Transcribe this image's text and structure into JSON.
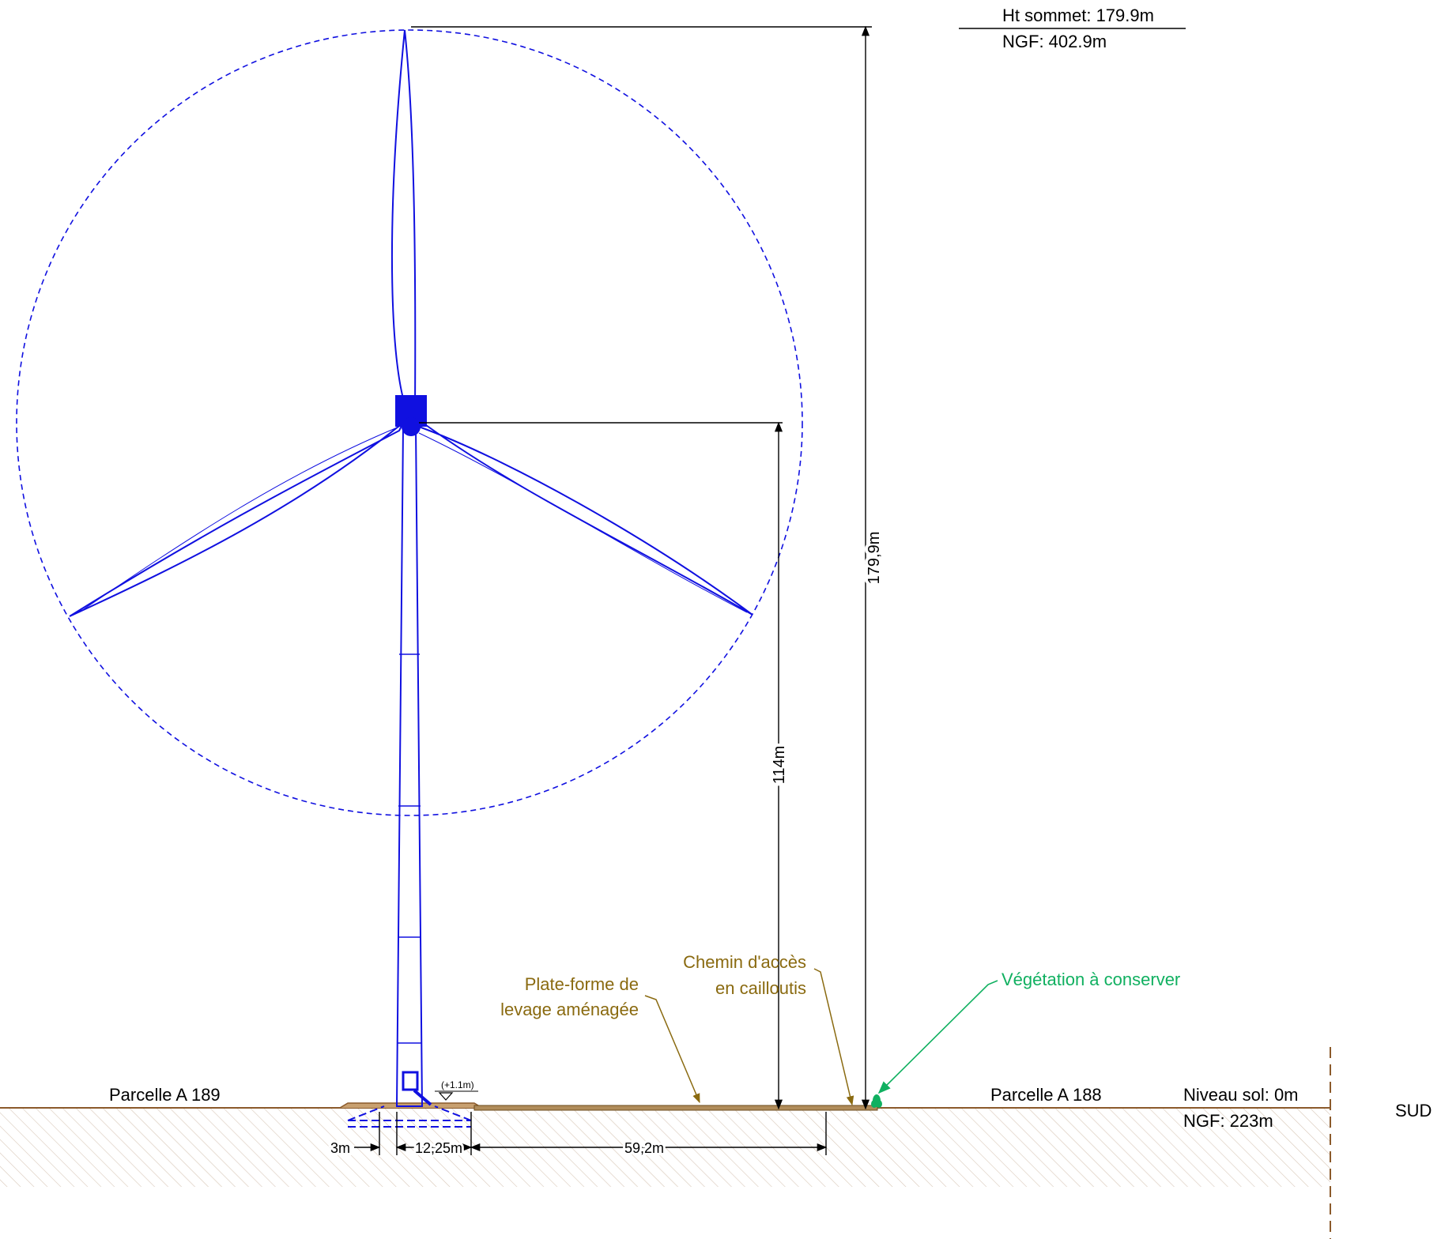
{
  "summit": {
    "height": "Ht sommet: 179.9m",
    "ngf": "NGF: 402.9m"
  },
  "dimensions": {
    "total_height": "179,9m",
    "hub_height": "114m",
    "offset_left": "3m",
    "foundation": "12,25m",
    "platform": "59,2m",
    "elevation_mark": "(+1.1m)"
  },
  "annotations": {
    "platform_line1": "Plate-forme de",
    "platform_line2": "levage aménagée",
    "access_line1": "Chemin d'accès",
    "access_line2": "en cailloutis",
    "vegetation": "Végétation à conserver"
  },
  "ground": {
    "parcel_left": "Parcelle A 189",
    "parcel_right": "Parcelle A 188",
    "level": "Niveau sol: 0m",
    "ngf": "NGF: 223m",
    "orientation": "SUD"
  },
  "colors": {
    "turbine": "#1010e0",
    "annotation": "#8a6a10",
    "vegetation": "#10b060",
    "ground": "#8b5a2b",
    "hatch": "#d8c8b8",
    "dimension": "#000000"
  }
}
